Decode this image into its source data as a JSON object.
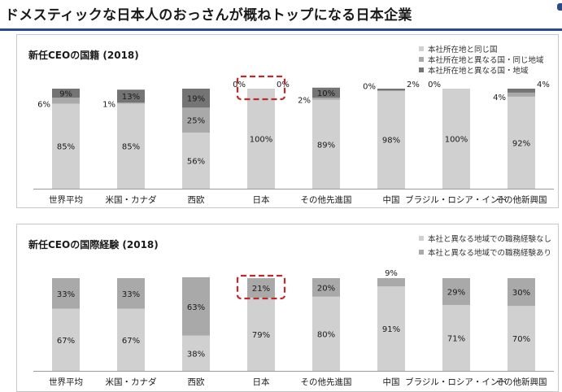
{
  "page_title": "ドメスティックな日本人のおっさんが概ねトップになる日本企業",
  "colors": {
    "light": "#d0d0d0",
    "mid": "#a9a9a9",
    "dark": "#747474",
    "highlight": "#c0282a",
    "rule": "#2a4a8c"
  },
  "chart_data": [
    {
      "type": "bar",
      "stacked": true,
      "title": "新任CEOの国籍 (2018)",
      "categories": [
        "世界平均",
        "米国・カナダ",
        "西欧",
        "日本",
        "その他先進国",
        "中国",
        "ブラジル・ロシア・インド",
        "その他新興国"
      ],
      "series": [
        {
          "name": "本社所在地と同じ国",
          "color": "#d0d0d0",
          "values": [
            85,
            85,
            56,
            100,
            89,
            98,
            100,
            92
          ]
        },
        {
          "name": "本社所在地と異なる国・同じ地域",
          "color": "#a9a9a9",
          "values": [
            6,
            1,
            25,
            0,
            2,
            0,
            0,
            4
          ]
        },
        {
          "name": "本社所在地と異なる国・地域",
          "color": "#747474",
          "values": [
            9,
            13,
            19,
            0,
            10,
            2,
            0,
            4
          ]
        }
      ],
      "labels": [
        {
          "cat": 0,
          "series": 0,
          "text": "85%"
        },
        {
          "cat": 0,
          "series": 1,
          "text": "6%"
        },
        {
          "cat": 0,
          "series": 2,
          "text": "9%"
        },
        {
          "cat": 1,
          "series": 0,
          "text": "85%"
        },
        {
          "cat": 1,
          "series": 1,
          "text": "1%"
        },
        {
          "cat": 1,
          "series": 2,
          "text": "13%"
        },
        {
          "cat": 2,
          "series": 0,
          "text": "56%"
        },
        {
          "cat": 2,
          "series": 1,
          "text": "25%"
        },
        {
          "cat": 2,
          "series": 2,
          "text": "19%"
        },
        {
          "cat": 3,
          "series": 0,
          "text": "100%"
        },
        {
          "cat": 3,
          "series": 1,
          "text": "0%"
        },
        {
          "cat": 3,
          "series": 2,
          "text": "0%"
        },
        {
          "cat": 4,
          "series": 0,
          "text": "89%"
        },
        {
          "cat": 4,
          "series": 1,
          "text": "2%"
        },
        {
          "cat": 4,
          "series": 2,
          "text": "10%"
        },
        {
          "cat": 5,
          "series": 0,
          "text": "98%"
        },
        {
          "cat": 5,
          "series": 1,
          "text": "0%"
        },
        {
          "cat": 5,
          "series": 2,
          "text": "2%"
        },
        {
          "cat": 6,
          "series": 0,
          "text": "100%"
        },
        {
          "cat": 6,
          "series": 1,
          "text": "0%"
        },
        {
          "cat": 7,
          "series": 0,
          "text": "92%"
        },
        {
          "cat": 7,
          "series": 1,
          "text": "4%"
        },
        {
          "cat": 7,
          "series": 2,
          "text": "4%"
        }
      ],
      "highlight_category": "日本",
      "ylim": [
        0,
        100
      ]
    },
    {
      "type": "bar",
      "stacked": true,
      "title": "新任CEOの国際経験 (2018)",
      "categories": [
        "世界平均",
        "米国・カナダ",
        "西欧",
        "日本",
        "その他先進国",
        "中国",
        "ブラジル・ロシア・インド",
        "その他新興国"
      ],
      "series": [
        {
          "name": "本社と異なる地域での職務経験なし",
          "color": "#d0d0d0",
          "values": [
            67,
            67,
            38,
            79,
            80,
            91,
            71,
            70
          ]
        },
        {
          "name": "本社と異なる地域での職務経験あり",
          "color": "#a9a9a9",
          "values": [
            33,
            33,
            63,
            21,
            20,
            9,
            29,
            30
          ]
        }
      ],
      "labels": [
        {
          "cat": 0,
          "series": 0,
          "text": "67%"
        },
        {
          "cat": 0,
          "series": 1,
          "text": "33%"
        },
        {
          "cat": 1,
          "series": 0,
          "text": "67%"
        },
        {
          "cat": 1,
          "series": 1,
          "text": "33%"
        },
        {
          "cat": 2,
          "series": 0,
          "text": "38%"
        },
        {
          "cat": 2,
          "series": 1,
          "text": "63%"
        },
        {
          "cat": 3,
          "series": 0,
          "text": "79%"
        },
        {
          "cat": 3,
          "series": 1,
          "text": "21%"
        },
        {
          "cat": 4,
          "series": 0,
          "text": "80%"
        },
        {
          "cat": 4,
          "series": 1,
          "text": "20%"
        },
        {
          "cat": 5,
          "series": 0,
          "text": "91%"
        },
        {
          "cat": 5,
          "series": 1,
          "text": "9%"
        },
        {
          "cat": 6,
          "series": 0,
          "text": "71%"
        },
        {
          "cat": 6,
          "series": 1,
          "text": "29%"
        },
        {
          "cat": 7,
          "series": 0,
          "text": "70%"
        },
        {
          "cat": 7,
          "series": 1,
          "text": "30%"
        }
      ],
      "highlight_category": "日本",
      "ylim": [
        0,
        100
      ]
    }
  ]
}
